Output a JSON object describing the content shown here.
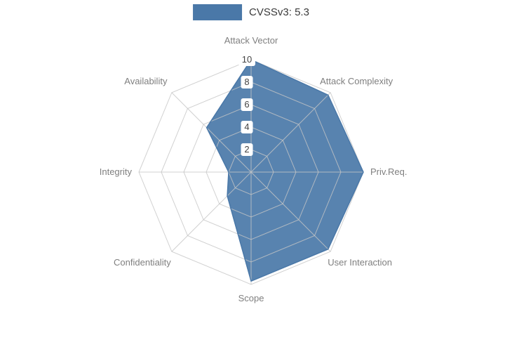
{
  "legend": {
    "label": "CVSSv3: 5.3",
    "swatch_color": "#4a78a8"
  },
  "chart_data": {
    "type": "radar",
    "title": "CVSSv3: 5.3",
    "categories": [
      "Attack Vector",
      "Attack Complexity",
      "Priv.Req.",
      "User Interaction",
      "Scope",
      "Confidentiality",
      "Integrity",
      "Availability"
    ],
    "series": [
      {
        "name": "CVSSv3: 5.3",
        "values": [
          10,
          9.7,
          10,
          9.7,
          9.7,
          3,
          2,
          5.6
        ]
      }
    ],
    "range": [
      0,
      10
    ],
    "radial_ticks": [
      2,
      4,
      6,
      8,
      10
    ],
    "grid": true,
    "legend_position": "top",
    "fill_color": "#4a78a8",
    "grid_color": "#c6c6c6",
    "label_color": "#7f7f7f",
    "tick_color": "#444444"
  }
}
